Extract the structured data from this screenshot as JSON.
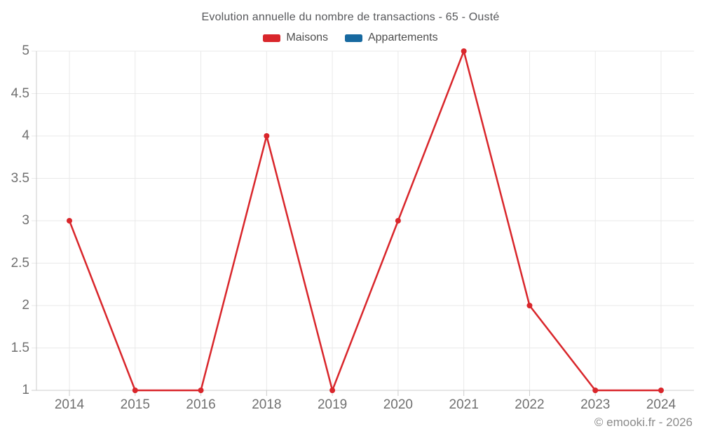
{
  "title": "Evolution annuelle du nombre de transactions - 65 - Ousté",
  "footer": {
    "text": "© emooki.fr - 2026"
  },
  "chart_data": {
    "type": "line",
    "title": "Evolution annuelle du nombre de transactions - 65 - Ousté",
    "categories": [
      "2014",
      "2015",
      "2016",
      "2018",
      "2019",
      "2020",
      "2021",
      "2022",
      "2023",
      "2024"
    ],
    "series": [
      {
        "name": "Maisons",
        "color": "#d9262b",
        "values": [
          3,
          1,
          1,
          4,
          1,
          3,
          5,
          2,
          1,
          1
        ]
      },
      {
        "name": "Appartements",
        "color": "#1769a0",
        "values": []
      }
    ],
    "xlabel": "",
    "ylabel": "",
    "ylim": [
      1,
      5
    ],
    "yticks": [
      "1",
      "1.5",
      "2",
      "2.5",
      "3",
      "3.5",
      "4",
      "4.5",
      "5"
    ],
    "grid": true,
    "legend_position": "top-center",
    "marker_radius": 4,
    "line_width": 2.5,
    "colors": {
      "grid": "#e9e9e9",
      "axis": "#cccccc",
      "title_text": "#56575a",
      "legend_text": "#4d4d4d",
      "axis_text": "#707070",
      "footer_text": "#8a8a8a"
    }
  }
}
